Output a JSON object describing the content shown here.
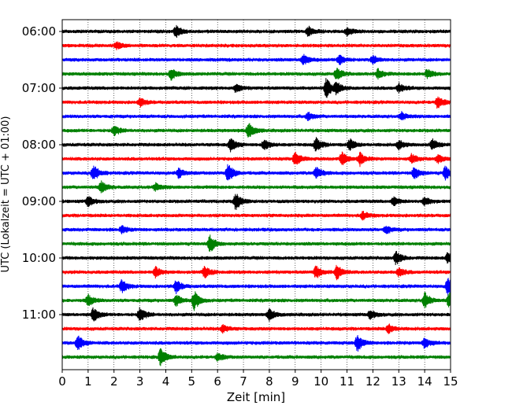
{
  "chart_data": {
    "type": "line",
    "title": "",
    "xlabel": "Zeit  [min]",
    "ylabel": "UTC (Lokalzeit = UTC + 01:00)",
    "xlim": [
      0,
      15
    ],
    "x_ticks": [
      "0",
      "1",
      "2",
      "3",
      "4",
      "5",
      "6",
      "7",
      "8",
      "9",
      "10",
      "11",
      "12",
      "13",
      "14",
      "15"
    ],
    "y_ticks": [
      "06:00",
      "07:00",
      "08:00",
      "09:00",
      "10:00",
      "11:00"
    ],
    "grid": "vertical dotted at each minute",
    "traces_per_hour": 4,
    "minutes_per_trace": 15,
    "colors": [
      "#000000",
      "#ff0000",
      "#0000ff",
      "#008000"
    ],
    "series": [
      {
        "start": "06:00",
        "events": [
          {
            "t": 4.4,
            "a": 0.55
          },
          {
            "t": 9.5,
            "a": 0.45
          },
          {
            "t": 11.0,
            "a": 0.35
          }
        ]
      },
      {
        "start": "06:15",
        "events": [
          {
            "t": 2.1,
            "a": 0.3
          }
        ]
      },
      {
        "start": "06:30",
        "events": [
          {
            "t": 9.3,
            "a": 0.5
          },
          {
            "t": 10.7,
            "a": 0.45
          },
          {
            "t": 12.0,
            "a": 0.35
          }
        ]
      },
      {
        "start": "06:45",
        "events": [
          {
            "t": 4.2,
            "a": 0.5
          },
          {
            "t": 10.6,
            "a": 0.55
          },
          {
            "t": 12.2,
            "a": 0.45
          },
          {
            "t": 14.1,
            "a": 0.4
          }
        ]
      },
      {
        "start": "07:00",
        "events": [
          {
            "t": 6.7,
            "a": 0.35
          },
          {
            "t": 10.2,
            "a": 0.9
          },
          {
            "t": 10.6,
            "a": 0.5
          },
          {
            "t": 13.0,
            "a": 0.4
          }
        ]
      },
      {
        "start": "07:15",
        "events": [
          {
            "t": 3.0,
            "a": 0.35
          },
          {
            "t": 14.5,
            "a": 0.55
          }
        ]
      },
      {
        "start": "07:30",
        "events": [
          {
            "t": 9.5,
            "a": 0.35
          },
          {
            "t": 13.1,
            "a": 0.35
          }
        ]
      },
      {
        "start": "07:45",
        "events": [
          {
            "t": 2.0,
            "a": 0.45
          },
          {
            "t": 7.2,
            "a": 0.7
          }
        ]
      },
      {
        "start": "08:00",
        "events": [
          {
            "t": 6.5,
            "a": 0.6
          },
          {
            "t": 7.8,
            "a": 0.5
          },
          {
            "t": 9.8,
            "a": 0.6
          },
          {
            "t": 11.1,
            "a": 0.5
          },
          {
            "t": 13.0,
            "a": 0.4
          },
          {
            "t": 14.3,
            "a": 0.5
          }
        ]
      },
      {
        "start": "08:15",
        "events": [
          {
            "t": 9.0,
            "a": 0.65
          },
          {
            "t": 10.8,
            "a": 0.6
          },
          {
            "t": 11.5,
            "a": 0.55
          },
          {
            "t": 13.5,
            "a": 0.4
          },
          {
            "t": 14.5,
            "a": 0.35
          }
        ]
      },
      {
        "start": "08:30",
        "events": [
          {
            "t": 1.2,
            "a": 0.7
          },
          {
            "t": 4.5,
            "a": 0.45
          },
          {
            "t": 6.4,
            "a": 0.85
          },
          {
            "t": 9.8,
            "a": 0.55
          },
          {
            "t": 13.6,
            "a": 0.55
          },
          {
            "t": 14.8,
            "a": 0.6
          }
        ]
      },
      {
        "start": "08:45",
        "events": [
          {
            "t": 1.5,
            "a": 0.55
          },
          {
            "t": 3.6,
            "a": 0.35
          }
        ]
      },
      {
        "start": "09:00",
        "events": [
          {
            "t": 1.0,
            "a": 0.45
          },
          {
            "t": 6.7,
            "a": 0.75
          },
          {
            "t": 12.8,
            "a": 0.4
          },
          {
            "t": 14.0,
            "a": 0.35
          }
        ]
      },
      {
        "start": "09:15",
        "events": [
          {
            "t": 11.6,
            "a": 0.35
          }
        ]
      },
      {
        "start": "09:30",
        "events": [
          {
            "t": 2.3,
            "a": 0.3
          },
          {
            "t": 12.5,
            "a": 0.35
          }
        ]
      },
      {
        "start": "09:45",
        "events": [
          {
            "t": 5.7,
            "a": 0.8
          }
        ]
      },
      {
        "start": "10:00",
        "events": [
          {
            "t": 12.9,
            "a": 0.6
          },
          {
            "t": 14.9,
            "a": 0.5
          }
        ]
      },
      {
        "start": "10:15",
        "events": [
          {
            "t": 3.6,
            "a": 0.5
          },
          {
            "t": 5.5,
            "a": 0.5
          },
          {
            "t": 9.8,
            "a": 0.55
          },
          {
            "t": 10.6,
            "a": 0.65
          },
          {
            "t": 13.0,
            "a": 0.4
          }
        ]
      },
      {
        "start": "10:30",
        "events": [
          {
            "t": 2.3,
            "a": 0.55
          },
          {
            "t": 4.4,
            "a": 0.55
          },
          {
            "t": 14.9,
            "a": 0.9
          }
        ]
      },
      {
        "start": "10:45",
        "events": [
          {
            "t": 1.0,
            "a": 0.5
          },
          {
            "t": 4.4,
            "a": 0.5
          },
          {
            "t": 5.1,
            "a": 0.85
          },
          {
            "t": 14.0,
            "a": 0.7
          },
          {
            "t": 14.95,
            "a": 0.7
          }
        ]
      },
      {
        "start": "11:00",
        "events": [
          {
            "t": 1.2,
            "a": 0.6
          },
          {
            "t": 3.0,
            "a": 0.65
          },
          {
            "t": 8.0,
            "a": 0.5
          },
          {
            "t": 11.9,
            "a": 0.4
          }
        ]
      },
      {
        "start": "11:15",
        "events": [
          {
            "t": 6.2,
            "a": 0.35
          },
          {
            "t": 12.6,
            "a": 0.4
          }
        ]
      },
      {
        "start": "11:30",
        "events": [
          {
            "t": 0.6,
            "a": 0.7
          },
          {
            "t": 11.4,
            "a": 0.75
          },
          {
            "t": 14.0,
            "a": 0.5
          }
        ]
      },
      {
        "start": "11:45",
        "events": [
          {
            "t": 3.8,
            "a": 0.75
          },
          {
            "t": 6.0,
            "a": 0.35
          }
        ]
      }
    ]
  }
}
